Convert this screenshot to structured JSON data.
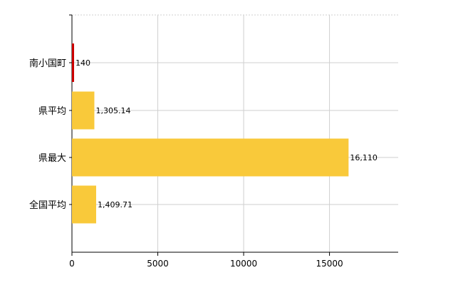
{
  "chart_data": {
    "type": "bar",
    "orientation": "horizontal",
    "categories": [
      "南小国町",
      "県平均",
      "県最大",
      "全国平均"
    ],
    "values": [
      140,
      1305.14,
      16110,
      1409.71
    ],
    "value_labels": [
      "140",
      "1,305.14",
      "16,110",
      "1,409.71"
    ],
    "highlight_color": "#cc0000",
    "bar_color": "#f9c93a",
    "highlight_index": 0,
    "xlim": [
      0,
      19000
    ],
    "xticks": [
      0,
      5000,
      10000,
      15000
    ],
    "xtick_labels": [
      "0",
      "5000",
      "10000",
      "15000"
    ],
    "grid": true,
    "title": "",
    "xlabel": "",
    "ylabel": ""
  }
}
